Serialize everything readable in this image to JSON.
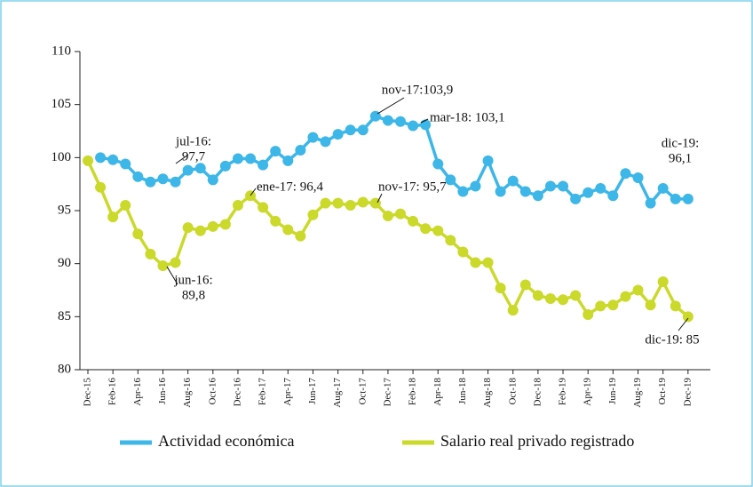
{
  "chart_data": {
    "type": "line",
    "categories": [
      "Dec-15",
      null,
      "Feb-16",
      null,
      "Apr-16",
      null,
      "Jun-16",
      null,
      "Aug-16",
      null,
      "Oct-16",
      null,
      "Dec-16",
      null,
      "Feb-17",
      null,
      "Apr-17",
      null,
      "Jun-17",
      null,
      "Aug-17",
      null,
      "Oct-17",
      null,
      "Dec-17",
      null,
      "Feb-18",
      null,
      "Apr-18",
      null,
      "Jun-18",
      null,
      "Aug-18",
      null,
      "Oct-18",
      null,
      "Dec-18",
      null,
      "Feb-19",
      null,
      "Apr-19",
      null,
      "Jun-19",
      null,
      "Aug-19",
      null,
      "Oct-19",
      null,
      "Dec-19"
    ],
    "series": [
      {
        "name": "Actividad económica",
        "color": "#3db6e8",
        "values": [
          null,
          100.0,
          99.8,
          99.4,
          98.2,
          97.7,
          98.0,
          97.7,
          98.8,
          99.0,
          97.9,
          99.2,
          99.9,
          99.9,
          99.3,
          100.6,
          99.7,
          100.7,
          101.9,
          101.5,
          102.2,
          102.6,
          102.6,
          103.9,
          103.5,
          103.4,
          103.0,
          103.1,
          99.4,
          97.9,
          96.8,
          97.3,
          99.7,
          96.8,
          97.8,
          96.8,
          96.4,
          97.3,
          97.3,
          96.1,
          96.7,
          97.1,
          96.4,
          98.5,
          98.1,
          95.7,
          97.1,
          96.1,
          96.1
        ]
      },
      {
        "name": "Salario real privado registrado",
        "color": "#cbd92a",
        "values": [
          99.7,
          97.2,
          94.4,
          95.5,
          92.8,
          90.9,
          89.8,
          90.1,
          93.4,
          93.1,
          93.5,
          93.7,
          95.5,
          96.4,
          95.3,
          94.0,
          93.2,
          92.6,
          94.6,
          95.7,
          95.7,
          95.5,
          95.8,
          95.7,
          94.5,
          94.7,
          94.0,
          93.3,
          93.1,
          92.2,
          91.1,
          90.1,
          90.1,
          87.7,
          85.6,
          88.0,
          87.0,
          86.7,
          86.6,
          87.0,
          85.2,
          86.0,
          86.1,
          86.9,
          87.5,
          86.1,
          88.3,
          86.0,
          85.0
        ]
      }
    ],
    "ylim": [
      80,
      110
    ],
    "yticks": [
      80,
      85,
      90,
      95,
      100,
      105,
      110
    ],
    "legend": "bottom",
    "annotations": [
      {
        "lines": [
          "jul-16:",
          "97,7"
        ]
      },
      {
        "lines": [
          "jun-16:",
          "89,8"
        ]
      },
      {
        "lines": [
          "ene-17: 96,4"
        ]
      },
      {
        "lines": [
          "nov-17:103,9"
        ]
      },
      {
        "lines": [
          "mar-18: 103,1"
        ]
      },
      {
        "lines": [
          "nov-17: 95,7"
        ]
      },
      {
        "lines": [
          "dic-19:",
          "96,1"
        ]
      },
      {
        "lines": [
          "dic-19: 85"
        ]
      }
    ]
  }
}
